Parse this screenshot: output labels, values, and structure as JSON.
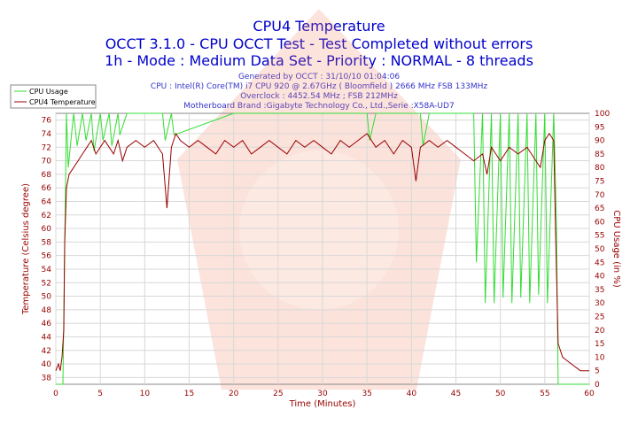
{
  "chart_data": {
    "type": "line",
    "title": "CPU4 Temperature",
    "subtitle_1": "OCCT 3.1.0 - CPU OCCT Test - Test Completed without errors",
    "subtitle_2": "1h - Mode : Medium Data Set - Priority : NORMAL - 8 threads",
    "info_lines": [
      "Generated by OCCT : 31/10/10 01:04:06",
      "CPU : Intel(R) Core(TM) i7 CPU 920 @ 2.67GHz ( Bloomfield ) 2666 MHz FSB 133MHz",
      "Overclock : 4452.54 MHz ; FSB 212MHz",
      "Motherboard Brand :Gigabyte Technology Co., Ltd.,Serie :X58A-UD7"
    ],
    "xlabel": "Time (Minutes)",
    "ylabel_left": "Temperature (Celsius degree)",
    "ylabel_right": "CPU Usage (in %)",
    "xlim": [
      0,
      60
    ],
    "ylim_left": [
      37,
      77
    ],
    "ylim_right": [
      0,
      100
    ],
    "x_ticks": [
      0,
      5,
      10,
      15,
      20,
      25,
      30,
      35,
      40,
      45,
      50,
      55,
      60
    ],
    "y_ticks_left": [
      38,
      40,
      42,
      44,
      46,
      48,
      50,
      52,
      54,
      56,
      58,
      60,
      62,
      64,
      66,
      68,
      70,
      72,
      74,
      76
    ],
    "y_ticks_right": [
      0,
      5,
      10,
      15,
      20,
      25,
      30,
      35,
      40,
      45,
      50,
      55,
      60,
      65,
      70,
      75,
      80,
      85,
      90,
      95,
      100
    ],
    "grid": true,
    "legend_position": "top-left",
    "series": [
      {
        "name": "CPU Usage",
        "color": "#33dd33",
        "axis": "right",
        "x": [
          0,
          0.8,
          1.2,
          1.4,
          2,
          2.4,
          3,
          3.4,
          4,
          4.3,
          5,
          5.3,
          6,
          6.3,
          7,
          7.2,
          8,
          12,
          12.3,
          13,
          13.3,
          20,
          30,
          35,
          35.3,
          36,
          40,
          41,
          41.3,
          42,
          45,
          47,
          47.3,
          48,
          48.3,
          49,
          49.3,
          50,
          50.3,
          51,
          51.3,
          52,
          52.3,
          53,
          53.3,
          54,
          54.3,
          55,
          55.3,
          56,
          56.3,
          56.5,
          57,
          60
        ],
        "values": [
          0,
          0,
          100,
          80,
          100,
          88,
          100,
          90,
          100,
          86,
          100,
          90,
          100,
          88,
          100,
          92,
          100,
          100,
          90,
          100,
          92,
          100,
          100,
          100,
          90,
          100,
          100,
          100,
          88,
          100,
          100,
          100,
          45,
          100,
          30,
          100,
          30,
          100,
          32,
          100,
          30,
          100,
          32,
          100,
          30,
          100,
          33,
          100,
          30,
          100,
          60,
          0,
          0,
          0
        ]
      },
      {
        "name": "CPU4 Temperature",
        "color": "#990000",
        "axis": "left",
        "x": [
          0,
          0.3,
          0.5,
          0.7,
          0.9,
          1,
          1.2,
          1.5,
          2,
          2.5,
          3,
          3.5,
          4,
          4.5,
          5,
          5.5,
          6,
          6.5,
          7,
          7.5,
          8,
          9,
          10,
          11,
          12,
          12.5,
          13,
          13.5,
          14,
          15,
          16,
          17,
          18,
          19,
          20,
          21,
          22,
          23,
          24,
          25,
          26,
          27,
          28,
          29,
          30,
          31,
          32,
          33,
          34,
          35,
          36,
          37,
          38,
          39,
          40,
          40.5,
          41,
          42,
          43,
          44,
          45,
          46,
          47,
          48,
          48.5,
          49,
          50,
          51,
          52,
          53,
          54,
          54.5,
          55,
          55.5,
          56,
          56.2,
          56.5,
          57,
          58,
          59,
          60
        ],
        "values": [
          39,
          40,
          39,
          41,
          45,
          58,
          66,
          68,
          69,
          70,
          71,
          72,
          73,
          71,
          72,
          73,
          72,
          71,
          73,
          70,
          72,
          73,
          72,
          73,
          71,
          63,
          72,
          74,
          73,
          72,
          73,
          72,
          71,
          73,
          72,
          73,
          71,
          72,
          73,
          72,
          71,
          73,
          72,
          73,
          72,
          71,
          73,
          72,
          73,
          74,
          72,
          73,
          71,
          73,
          72,
          67,
          72,
          73,
          72,
          73,
          72,
          71,
          70,
          71,
          68,
          72,
          70,
          72,
          71,
          72,
          70,
          69,
          73,
          74,
          73,
          60,
          43,
          41,
          40,
          39,
          39
        ]
      }
    ]
  }
}
